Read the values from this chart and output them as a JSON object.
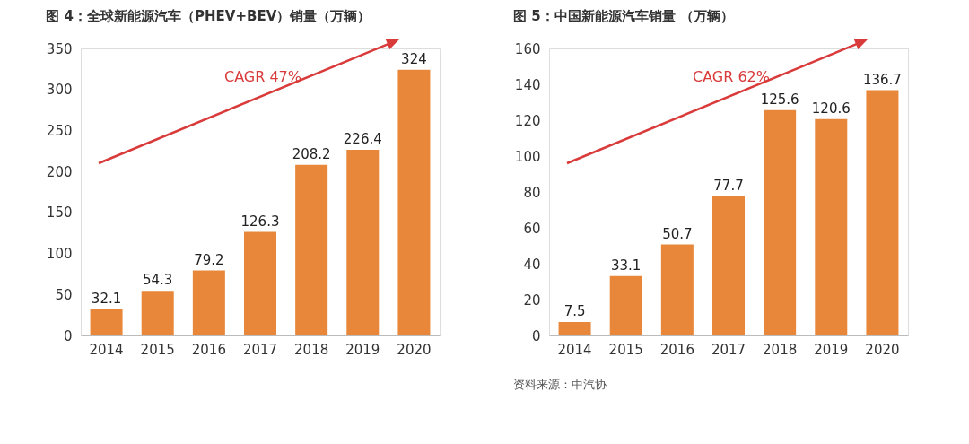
{
  "chart_data": [
    {
      "type": "bar",
      "title": "图 4：全球新能源汽车（PHEV+BEV）销量（万辆）",
      "categories": [
        "2014",
        "2015",
        "2016",
        "2017",
        "2018",
        "2019",
        "2020"
      ],
      "values": [
        32.1,
        54.3,
        79.2,
        126.3,
        208.2,
        226.4,
        324
      ],
      "color": "#e8873a",
      "ylim": [
        0,
        350
      ],
      "yticks": [
        0,
        50,
        100,
        150,
        200,
        250,
        300,
        350
      ],
      "grid": false,
      "data_labels": true,
      "annotations": [
        "CAGR 47%"
      ]
    },
    {
      "type": "bar",
      "title": "图 5：中国新能源汽车销量 （万辆）",
      "categories": [
        "2014",
        "2015",
        "2016",
        "2017",
        "2018",
        "2019",
        "2020"
      ],
      "values": [
        7.5,
        33.1,
        50.7,
        77.7,
        125.6,
        120.6,
        136.7
      ],
      "color": "#e8873a",
      "ylim": [
        0,
        160
      ],
      "yticks": [
        0,
        20,
        40,
        60,
        80,
        100,
        120,
        140,
        160
      ],
      "grid": false,
      "data_labels": true,
      "annotations": [
        "CAGR 62%",
        "资料来源：中汽协"
      ]
    }
  ]
}
